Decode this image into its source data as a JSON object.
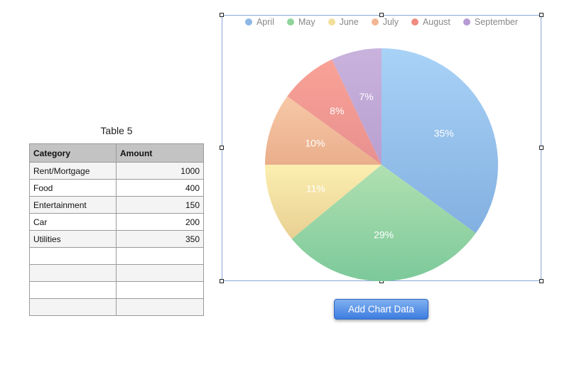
{
  "table": {
    "title": "Table 5",
    "headers": [
      "Category",
      "Amount"
    ],
    "rows": [
      [
        "Rent/Mortgage",
        "1000"
      ],
      [
        "Food",
        "400"
      ],
      [
        "Entertainment",
        "150"
      ],
      [
        "Car",
        "200"
      ],
      [
        "Utilities",
        "350"
      ],
      [
        "",
        ""
      ],
      [
        "",
        ""
      ],
      [
        "",
        ""
      ],
      [
        "",
        ""
      ]
    ]
  },
  "chart_data": {
    "type": "pie",
    "categories": [
      "April",
      "May",
      "June",
      "July",
      "August",
      "September"
    ],
    "values": [
      35,
      29,
      11,
      10,
      8,
      7
    ],
    "value_labels": [
      "35%",
      "29%",
      "11%",
      "10%",
      "8%",
      "7%"
    ],
    "colors": [
      [
        "#a9d2f7",
        "#82b0e0"
      ],
      [
        "#b1e0b1",
        "#7cc99a"
      ],
      [
        "#fbefb0",
        "#e8cf92"
      ],
      [
        "#f7c8a6",
        "#eaae8c"
      ],
      [
        "#f9a296",
        "#e8908f"
      ],
      [
        "#c9b3dd",
        "#b89fd0"
      ]
    ],
    "legend_colors": [
      "#8db8e6",
      "#8fd49a",
      "#f3de9b",
      "#f3b695",
      "#f08c80",
      "#b79ad3"
    ],
    "legend_position": "top"
  },
  "button": {
    "label": "Add Chart Data"
  }
}
